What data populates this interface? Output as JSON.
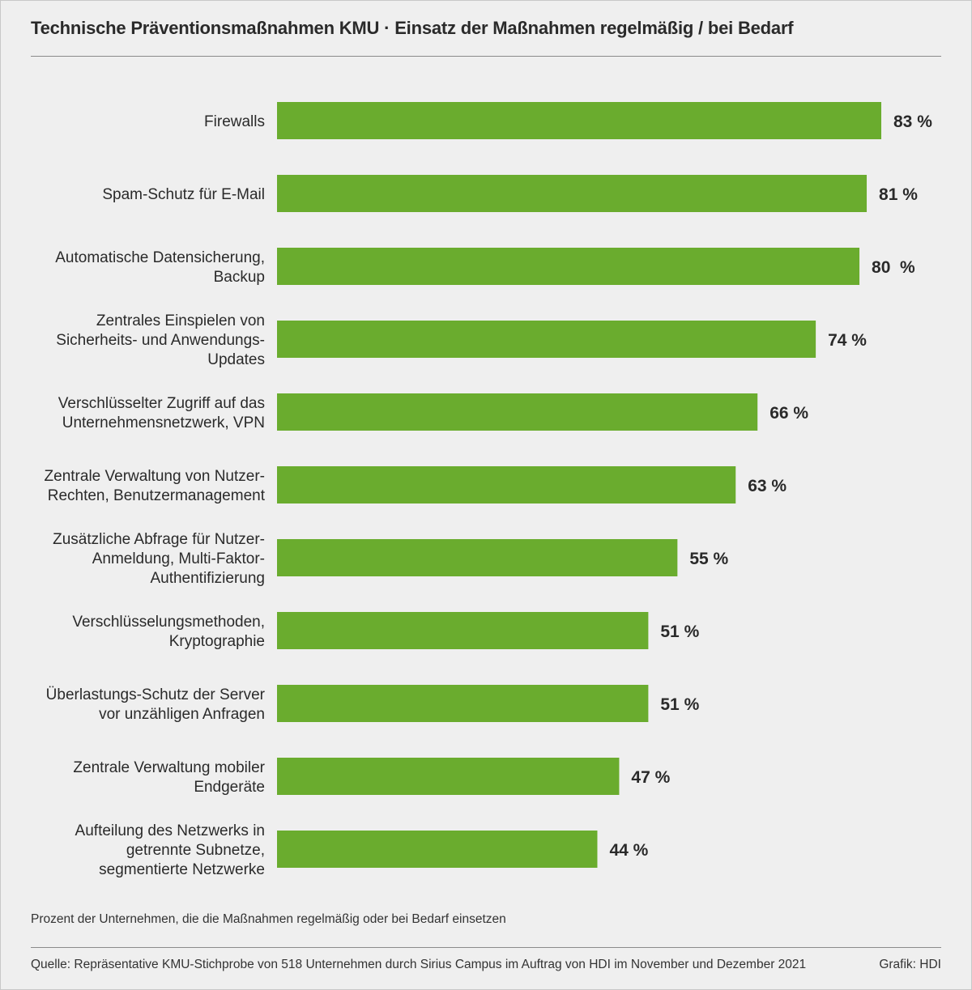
{
  "chart_data": {
    "type": "bar",
    "orientation": "horizontal",
    "title": "Technische Präventionsmaßnahmen KMU · Einsatz der Maßnahmen regelmäßig / bei Bedarf",
    "bar_color": "#6aac2e",
    "categories": [
      [
        "Firewalls"
      ],
      [
        "Spam-Schutz für E-Mail"
      ],
      [
        "Automatische Datensicherung,",
        "Backup"
      ],
      [
        "Zentrales Einspielen von",
        "Sicherheits- und Anwendungs-",
        "Updates"
      ],
      [
        "Verschlüsselter Zugriff auf das",
        "Unternehmensnetzwerk, VPN"
      ],
      [
        "Zentrale Verwaltung von Nutzer-",
        "Rechten, Benutzermanagement"
      ],
      [
        "Zusätzliche Abfrage für Nutzer-",
        "Anmeldung, Multi-Faktor-",
        "Authentifizierung"
      ],
      [
        "Verschlüsselungsmethoden,",
        "Kryptographie"
      ],
      [
        "Überlastungs-Schutz der Server",
        "vor unzähligen Anfragen"
      ],
      [
        "Zentrale Verwaltung mobiler",
        "Endgeräte"
      ],
      [
        "Aufteilung des Netzwerks in",
        "getrennte Subnetze,",
        "segmentierte Netzwerke"
      ]
    ],
    "values": [
      83,
      81,
      80,
      74,
      66,
      63,
      55,
      51,
      51,
      47,
      44
    ],
    "value_labels": [
      "83 %",
      "81 %",
      "80  %",
      "74 %",
      "66 %",
      "63 %",
      "55 %",
      "51 %",
      "51 %",
      "47 %",
      "44 %"
    ],
    "xlim": [
      0,
      100
    ],
    "unit": "%"
  },
  "note": "Prozent der Unternehmen, die die Maßnahmen regelmäßig oder bei Bedarf einsetzen",
  "source": "Quelle: Repräsentative KMU-Stichprobe von 518 Unternehmen durch Sirius Campus im Auftrag von HDI im November und Dezember 2021",
  "credit": "Grafik: HDI"
}
